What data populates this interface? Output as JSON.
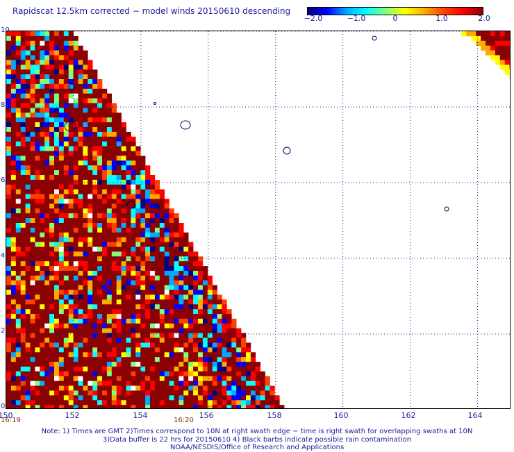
{
  "title": "Rapidscat 12.5km corrected − model winds 20150610 descending",
  "colorbar": {
    "min": -2.0,
    "max": 2.0,
    "labels": [
      "−2.0",
      "−1.0",
      "0",
      "1.0",
      "2.0"
    ],
    "colors": [
      "#00008b",
      "#0000ff",
      "#00aaff",
      "#00ffff",
      "#7fff7f",
      "#ffff00",
      "#ffaa00",
      "#ff4000",
      "#ff0000",
      "#8b0000"
    ]
  },
  "map": {
    "lon_range": [
      150,
      165
    ],
    "lat_range": [
      0,
      10
    ],
    "lon_labels": [
      "150",
      "152",
      "154",
      "156",
      "158",
      "160",
      "162",
      "164"
    ],
    "lat_labels": [
      "0",
      "2",
      "4",
      "6",
      "8",
      "10"
    ],
    "grid": "dotted"
  },
  "times": {
    "left": "16:19",
    "right": "16:20"
  },
  "notes": {
    "line1": "Note: 1) Times are GMT 2)Times correspond to 10N at right swath edge − time is right swath for overlapping swaths at 10N",
    "line2": "3)Data buffer is 22 hrs for 20150610 4) Black barbs indicate possible rain contamination",
    "line3": "NOAA/NESDIS/Office of Research and Applications"
  }
}
